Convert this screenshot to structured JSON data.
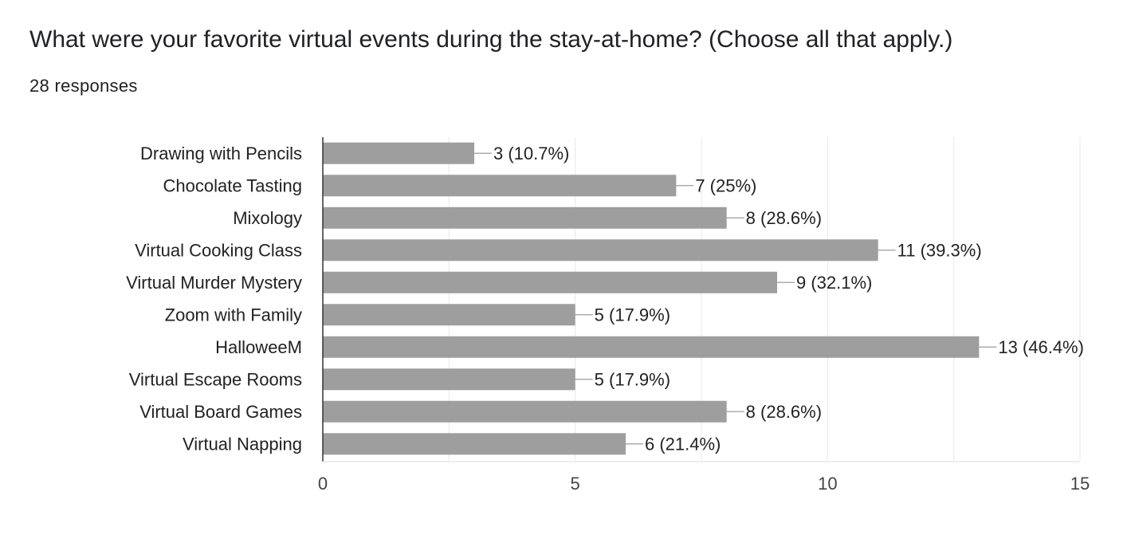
{
  "question": {
    "title": "What were your favorite virtual events during the stay-at-home? (Choose all that apply.)",
    "responses_label": "28 responses"
  },
  "colors": {
    "bar": "#9e9e9e",
    "gridline": "#e8e8e8",
    "axis": "#333333",
    "leader_line": "#9e9e9e"
  },
  "chart_data": {
    "type": "bar",
    "orientation": "horizontal",
    "categories": [
      "Drawing with Pencils",
      "Chocolate Tasting",
      "Mixology",
      "Virtual Cooking Class",
      "Virtual Murder Mystery",
      "Zoom with Family",
      "HalloweeM",
      "Virtual Escape Rooms",
      "Virtual Board Games",
      "Virtual Napping"
    ],
    "values": [
      3,
      7,
      8,
      11,
      9,
      5,
      13,
      5,
      8,
      6
    ],
    "data_labels": [
      "3 (10.7%)",
      "7 (25%)",
      "8 (28.6%)",
      "11 (39.3%)",
      "9 (32.1%)",
      "5 (17.9%)",
      "13 (46.4%)",
      "5 (17.9%)",
      "8 (28.6%)",
      "6 (21.4%)"
    ],
    "xlim": [
      0,
      15
    ],
    "x_ticks": [
      0,
      5,
      10,
      15
    ],
    "minor_grid_step": 2.5,
    "grid": true,
    "legend": "none"
  }
}
